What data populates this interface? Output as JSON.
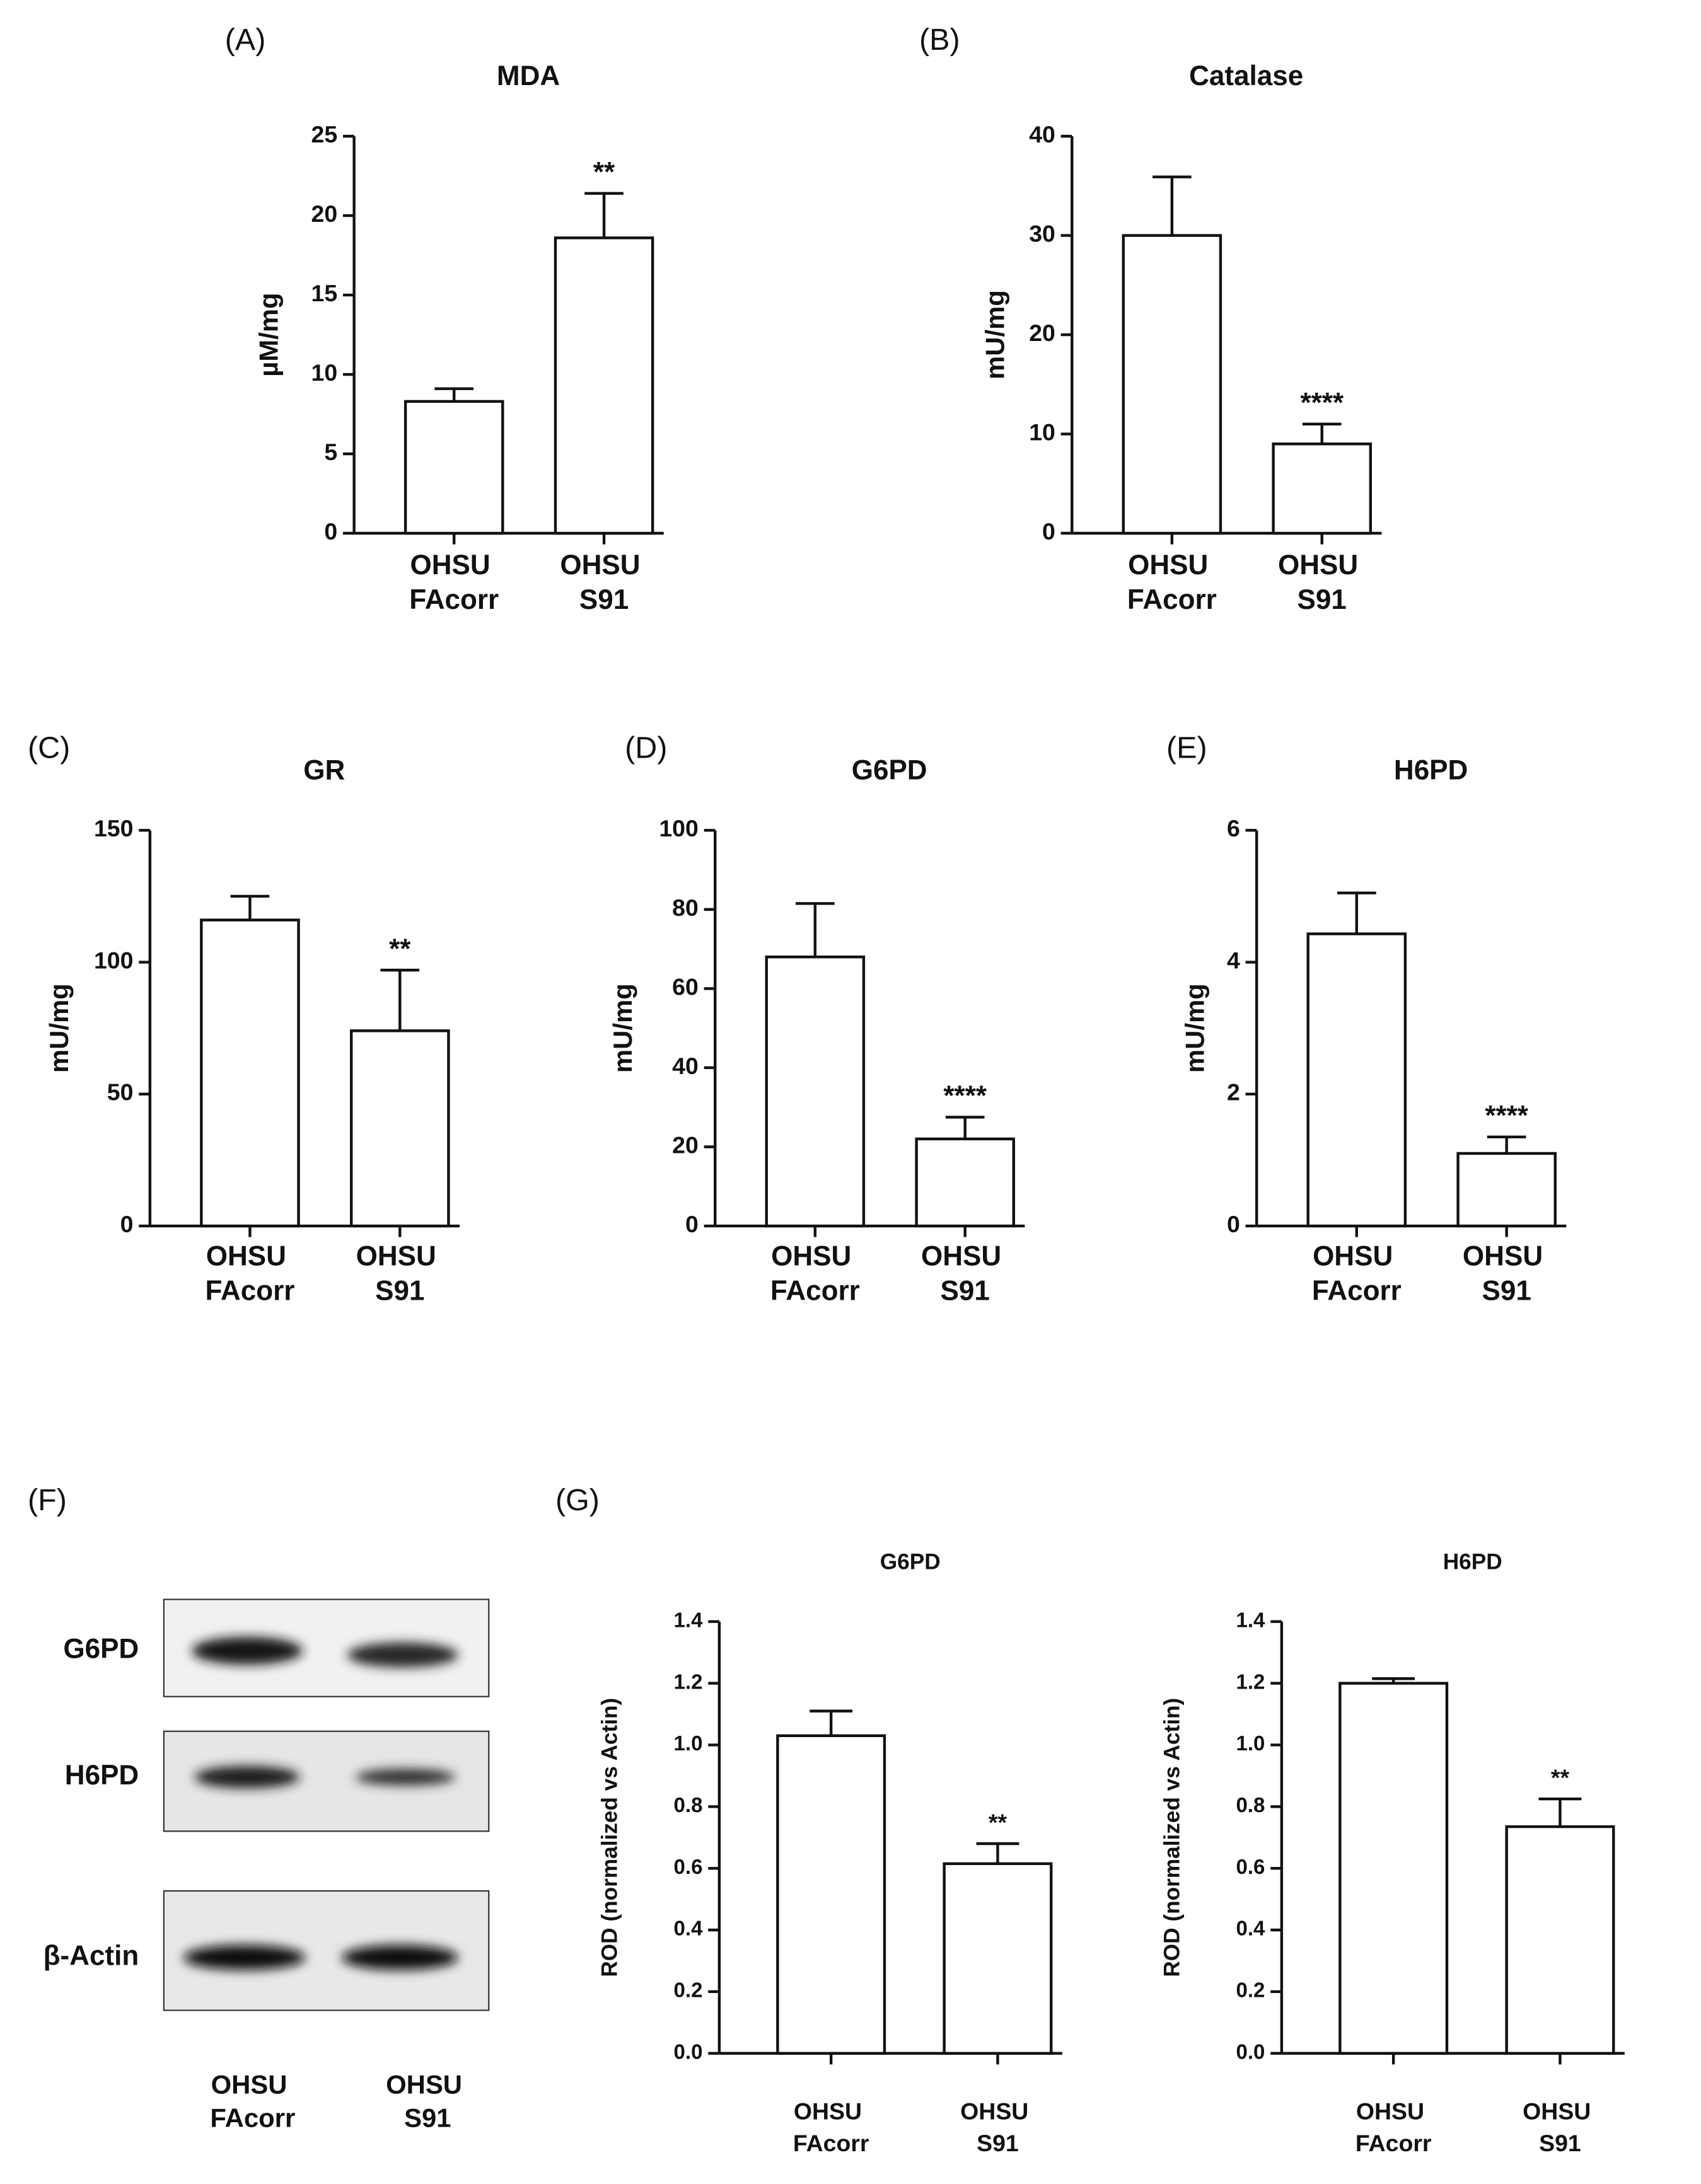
{
  "chart_data": [
    {
      "type": "bar",
      "panel": "(A)",
      "title": "MDA",
      "ylabel": "µM/mg",
      "categories": [
        "OHSU FAcorr",
        "OHSU S91"
      ],
      "values": [
        8.3,
        18.6
      ],
      "errors": [
        0.8,
        2.8
      ],
      "annotations": [
        null,
        "**"
      ],
      "ylim": [
        0,
        25
      ],
      "yticks": [
        0,
        5,
        10,
        15,
        20,
        25
      ]
    },
    {
      "type": "bar",
      "panel": "(B)",
      "title": "Catalase",
      "ylabel": "mU/mg",
      "categories": [
        "OHSU FAcorr",
        "OHSU S91"
      ],
      "values": [
        30,
        9
      ],
      "errors": [
        5.9,
        2
      ],
      "annotations": [
        null,
        "****"
      ],
      "ylim": [
        0,
        40
      ],
      "yticks": [
        0,
        10,
        20,
        30,
        40
      ]
    },
    {
      "type": "bar",
      "panel": "(C)",
      "title": "GR",
      "ylabel": "mU/mg",
      "categories": [
        "OHSU FAcorr",
        "OHSU S91"
      ],
      "values": [
        116,
        74
      ],
      "errors": [
        9,
        23
      ],
      "annotations": [
        null,
        "**"
      ],
      "ylim": [
        0,
        150
      ],
      "yticks": [
        0,
        50,
        100,
        150
      ]
    },
    {
      "type": "bar",
      "panel": "(D)",
      "title": "G6PD",
      "ylabel": "mU/mg",
      "categories": [
        "OHSU FAcorr",
        "OHSU S91"
      ],
      "values": [
        68,
        22
      ],
      "errors": [
        13.5,
        5.5
      ],
      "annotations": [
        null,
        "****"
      ],
      "ylim": [
        0,
        100
      ],
      "yticks": [
        0,
        20,
        40,
        60,
        80,
        100
      ]
    },
    {
      "type": "bar",
      "panel": "(E)",
      "title": "H6PD",
      "ylabel": "mU/mg",
      "categories": [
        "OHSU FAcorr",
        "OHSU S91"
      ],
      "values": [
        4.43,
        1.1
      ],
      "errors": [
        0.62,
        0.25
      ],
      "annotations": [
        null,
        "****"
      ],
      "ylim": [
        0,
        6
      ],
      "yticks": [
        0,
        2,
        4,
        6
      ]
    },
    {
      "type": "bar",
      "panel": "(G)",
      "title": "G6PD",
      "ylabel": "ROD (normalized vs Actin)",
      "categories": [
        "OHSU FAcorr",
        "OHSU S91"
      ],
      "values": [
        1.03,
        0.615
      ],
      "errors": [
        0.08,
        0.065
      ],
      "annotations": [
        null,
        "**"
      ],
      "ylim": [
        0,
        1.4
      ],
      "yticks": [
        {
          "value": 0,
          "label": "0.0"
        },
        0.2,
        0.4,
        0.6,
        0.8,
        {
          "value": 1,
          "label": "1.0"
        },
        1.2,
        1.4
      ]
    },
    {
      "type": "bar",
      "title": "H6PD",
      "ylabel": "ROD (normalized vs Actin)",
      "categories": [
        "OHSU FAcorr",
        "OHSU S91"
      ],
      "values": [
        1.2,
        0.735
      ],
      "errors": [
        0.015,
        0.09
      ],
      "annotations": [
        null,
        "**"
      ],
      "ylim": [
        0,
        1.4
      ],
      "yticks": [
        {
          "value": 0,
          "label": "0.0"
        },
        0.2,
        0.4,
        0.6,
        0.8,
        {
          "value": 1,
          "label": "1.0"
        },
        1.2,
        1.4
      ]
    }
  ],
  "blot": {
    "panel": "(F)",
    "bands": [
      "G6PD",
      "H6PD",
      "β-Actin"
    ],
    "lanes": [
      "OHSU FAcorr",
      "OHSU S91"
    ]
  }
}
